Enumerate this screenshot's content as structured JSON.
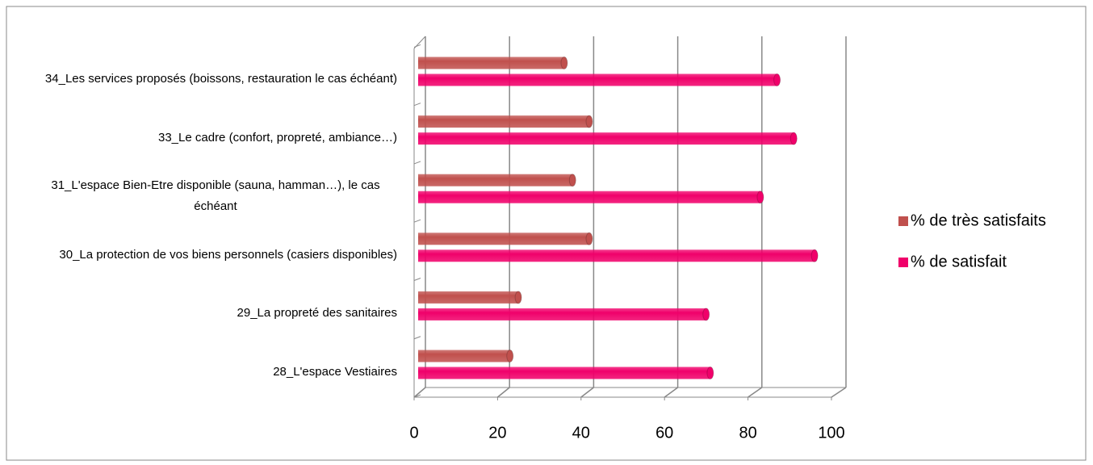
{
  "chart_data": {
    "type": "bar",
    "orientation": "horizontal",
    "categories": [
      "28_L'espace Vestiaires",
      "29_La propreté des sanitaires",
      "30_La protection de vos biens personnels (casiers disponibles)",
      "31_L'espace Bien-Etre disponible (sauna, hamman…), le cas échéant",
      "33_Le cadre (confort, propreté, ambiance…)",
      "34_Les services proposés (boissons, restauration le cas échéant)"
    ],
    "series": [
      {
        "name": "% de très satisfaits",
        "color": "#c0504d",
        "values": [
          22,
          24,
          41,
          37,
          41,
          35
        ]
      },
      {
        "name": "% de satisfait",
        "color": "#f0006a",
        "values": [
          70,
          69,
          95,
          82,
          90,
          86
        ]
      }
    ],
    "xlim": [
      0,
      100
    ],
    "xticks": [
      0,
      20,
      40,
      60,
      80,
      100
    ],
    "grid": true,
    "legend": "right"
  }
}
